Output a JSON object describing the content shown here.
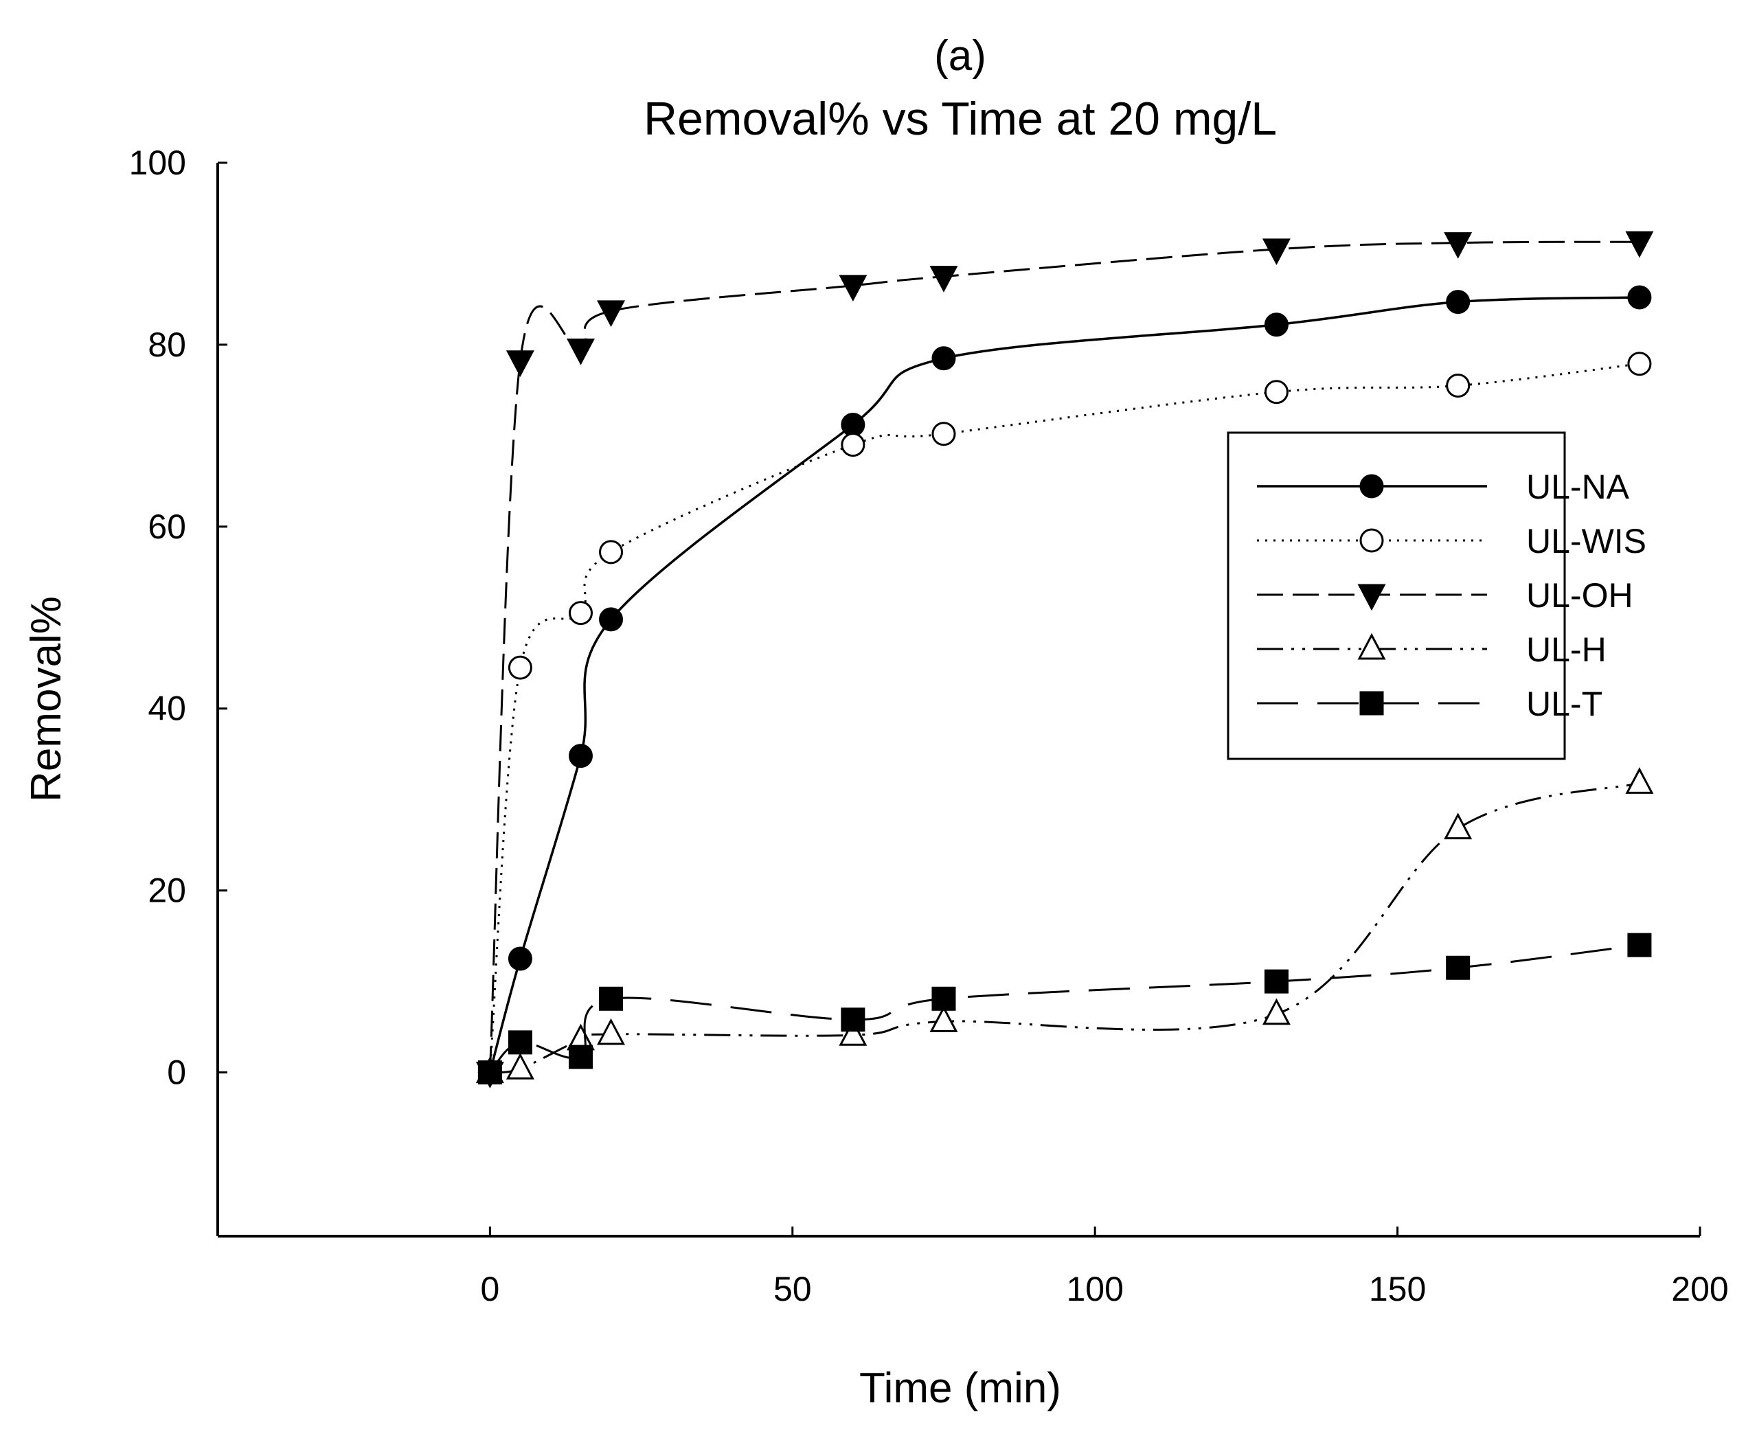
{
  "panel_label": "(a)",
  "chart_data": {
    "type": "line",
    "title": "Removal% vs Time at 20 mg/L",
    "xlabel": "Time (min)",
    "ylabel": "Removal%",
    "xlim": [
      -45,
      200
    ],
    "ylim": [
      -18,
      100
    ],
    "xticks": [
      0,
      50,
      100,
      150,
      200
    ],
    "yticks": [
      0,
      20,
      40,
      60,
      80,
      100
    ],
    "xtick_labels": [
      "0",
      "50",
      "100",
      "150",
      "200"
    ],
    "ytick_labels": [
      "0",
      "20",
      "40",
      "60",
      "80",
      "100"
    ],
    "grid": false,
    "legend_position": "right",
    "series": [
      {
        "name": "UL-NA",
        "marker": "circle-filled",
        "line": "solid",
        "x": [
          0,
          5,
          15,
          20,
          60,
          75,
          130,
          160,
          190
        ],
        "y": [
          0,
          12.5,
          34.8,
          49.8,
          71.2,
          78.5,
          82.2,
          84.7,
          85.2
        ]
      },
      {
        "name": "UL-WIS",
        "marker": "circle-open",
        "line": "dotted",
        "x": [
          0,
          5,
          15,
          20,
          60,
          75,
          130,
          160,
          190
        ],
        "y": [
          0,
          44.5,
          50.5,
          57.2,
          69.0,
          70.2,
          74.8,
          75.5,
          77.9
        ]
      },
      {
        "name": "UL-OH",
        "marker": "triangle-down-filled",
        "line": "dashed",
        "x": [
          0,
          5,
          15,
          20,
          60,
          75,
          130,
          160,
          190
        ],
        "y": [
          0,
          78.2,
          79.5,
          83.7,
          86.5,
          87.5,
          90.5,
          91.2,
          91.3
        ]
      },
      {
        "name": "UL-H",
        "marker": "triangle-up-open",
        "line": "dash-dot-dot",
        "x": [
          0,
          5,
          15,
          20,
          60,
          75,
          130,
          160,
          190
        ],
        "y": [
          0,
          0.4,
          3.6,
          4.2,
          4.1,
          5.6,
          6.4,
          26.8,
          31.8
        ]
      },
      {
        "name": "UL-T",
        "marker": "square-filled",
        "line": "long-dash",
        "x": [
          0,
          5,
          15,
          20,
          60,
          75,
          130,
          160,
          190
        ],
        "y": [
          0,
          3.3,
          1.7,
          8.1,
          5.8,
          8.1,
          10.0,
          11.5,
          14.0
        ]
      }
    ]
  }
}
